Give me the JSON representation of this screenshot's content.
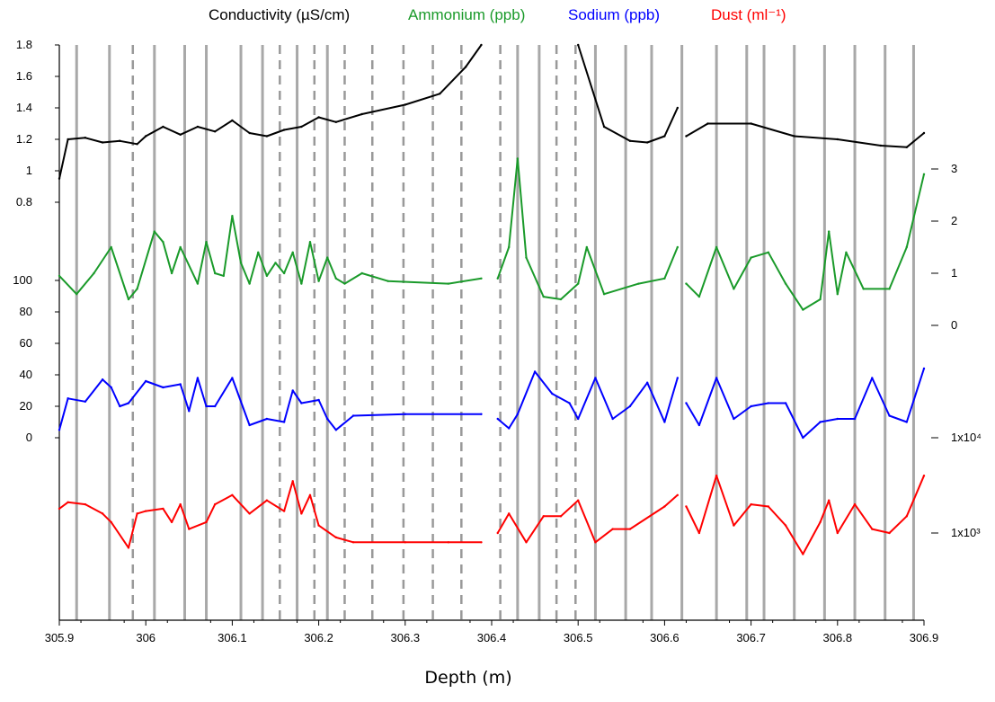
{
  "chart_data": {
    "type": "line",
    "title_parts": [
      {
        "text": "Conductivity (µS/cm)",
        "color": "#000000"
      },
      {
        "text": "Ammonium (ppb)",
        "color": "#1a9a2a"
      },
      {
        "text": "Sodium (ppb)",
        "color": "#0000ff"
      },
      {
        "text": "Dust (ml⁻¹)",
        "color": "#ff0000"
      }
    ],
    "xlabel": "Depth (m)",
    "xlim": [
      305.9,
      306.9
    ],
    "x_ticks": [
      "305.9",
      "306",
      "306.1",
      "306.2",
      "306.3",
      "306.4",
      "306.5",
      "306.6",
      "306.7",
      "306.8",
      "306.9"
    ],
    "conductivity_axis": {
      "range": [
        0.8,
        1.8
      ],
      "ticks": [
        "0.8",
        "1",
        "1.2",
        "1.4",
        "1.6",
        "1.8"
      ]
    },
    "sodium_axis": {
      "range": [
        0,
        100
      ],
      "ticks": [
        "0",
        "20",
        "40",
        "60",
        "80",
        "100"
      ]
    },
    "ammonium_axis": {
      "range": [
        0,
        3
      ],
      "ticks": [
        "0",
        "1",
        "2",
        "3"
      ]
    },
    "dust_axis": {
      "scale": "log",
      "ticks": [
        "1x10³",
        "1x10⁴"
      ]
    },
    "solid_lines": [
      305.92,
      305.958,
      306.01,
      306.045,
      306.07,
      306.11,
      306.135,
      306.175,
      306.21,
      306.43,
      306.455,
      306.52,
      306.555,
      306.585,
      306.62,
      306.66,
      306.695,
      306.715,
      306.75,
      306.785,
      306.82,
      306.855,
      306.888
    ],
    "dashed_lines": [
      305.985,
      306.155,
      306.195,
      306.23,
      306.262,
      306.298,
      306.332,
      306.365,
      306.41,
      306.475,
      306.497
    ],
    "gaps": [
      [
        306.388,
        306.407
      ],
      [
        306.615,
        306.625
      ]
    ],
    "series": [
      {
        "name": "Conductivity",
        "color": "#000000",
        "axis": "conductivity",
        "x": [
          305.9,
          305.91,
          305.93,
          305.95,
          305.97,
          305.99,
          306.0,
          306.02,
          306.04,
          306.06,
          306.08,
          306.1,
          306.12,
          306.14,
          306.16,
          306.18,
          306.2,
          306.22,
          306.25,
          306.3,
          306.34,
          306.37,
          306.388,
          306.5,
          306.53,
          306.56,
          306.58,
          306.6,
          306.615,
          306.625,
          306.65,
          306.7,
          306.75,
          306.8,
          306.85,
          306.88,
          306.9
        ],
        "y": [
          0.95,
          1.2,
          1.21,
          1.18,
          1.19,
          1.17,
          1.22,
          1.28,
          1.23,
          1.28,
          1.25,
          1.32,
          1.24,
          1.22,
          1.26,
          1.28,
          1.34,
          1.31,
          1.36,
          1.42,
          1.49,
          1.66,
          1.8,
          1.8,
          1.28,
          1.19,
          1.18,
          1.22,
          1.4,
          1.22,
          1.3,
          1.3,
          1.22,
          1.2,
          1.16,
          1.15,
          1.24
        ]
      },
      {
        "name": "Ammonium",
        "color": "#1a9a2a",
        "axis": "ammonium",
        "x": [
          305.9,
          305.92,
          305.94,
          305.96,
          305.98,
          305.99,
          306.01,
          306.02,
          306.03,
          306.04,
          306.06,
          306.07,
          306.08,
          306.09,
          306.1,
          306.11,
          306.12,
          306.13,
          306.14,
          306.15,
          306.16,
          306.17,
          306.18,
          306.19,
          306.2,
          306.21,
          306.22,
          306.23,
          306.25,
          306.28,
          306.35,
          306.388,
          306.407,
          306.42,
          306.43,
          306.44,
          306.46,
          306.48,
          306.5,
          306.51,
          306.53,
          306.57,
          306.6,
          306.615,
          306.625,
          306.64,
          306.66,
          306.68,
          306.7,
          306.72,
          306.74,
          306.76,
          306.78,
          306.79,
          306.8,
          306.81,
          306.83,
          306.86,
          306.88,
          306.9
        ],
        "y": [
          0.95,
          0.6,
          1.0,
          1.5,
          0.5,
          0.7,
          1.8,
          1.6,
          1.0,
          1.5,
          0.8,
          1.6,
          1.0,
          0.95,
          2.1,
          1.2,
          0.8,
          1.4,
          0.95,
          1.2,
          1.0,
          1.4,
          0.8,
          1.6,
          0.85,
          1.3,
          0.9,
          0.8,
          1.0,
          0.85,
          0.8,
          0.9,
          0.9,
          1.5,
          3.2,
          1.3,
          0.55,
          0.5,
          0.8,
          1.5,
          0.6,
          0.8,
          0.9,
          1.5,
          0.8,
          0.55,
          1.5,
          0.7,
          1.3,
          1.4,
          0.8,
          0.3,
          0.5,
          1.8,
          0.6,
          1.4,
          0.7,
          0.7,
          1.5,
          2.9
        ]
      },
      {
        "name": "Sodium",
        "color": "#0000ff",
        "axis": "sodium",
        "x": [
          305.9,
          305.91,
          305.93,
          305.95,
          305.96,
          305.97,
          305.98,
          306.0,
          306.02,
          306.04,
          306.05,
          306.06,
          306.07,
          306.08,
          306.1,
          306.12,
          306.14,
          306.16,
          306.17,
          306.18,
          306.2,
          306.21,
          306.22,
          306.24,
          306.3,
          306.388,
          306.407,
          306.42,
          306.43,
          306.45,
          306.47,
          306.49,
          306.5,
          306.52,
          306.54,
          306.56,
          306.58,
          306.6,
          306.615,
          306.625,
          306.64,
          306.66,
          306.68,
          306.7,
          306.72,
          306.74,
          306.76,
          306.78,
          306.8,
          306.82,
          306.84,
          306.86,
          306.88,
          306.9
        ],
        "y": [
          5,
          25,
          23,
          37,
          32,
          20,
          22,
          36,
          32,
          34,
          17,
          38,
          20,
          20,
          38,
          8,
          12,
          10,
          30,
          22,
          24,
          12,
          5,
          14,
          15,
          15,
          12,
          6,
          15,
          42,
          28,
          22,
          12,
          38,
          12,
          20,
          35,
          10,
          38,
          22,
          8,
          38,
          12,
          20,
          22,
          22,
          0,
          10,
          12,
          12,
          38,
          14,
          10,
          44
        ]
      },
      {
        "name": "Dust",
        "color": "#ff0000",
        "axis": "dust",
        "x": [
          305.9,
          305.91,
          305.93,
          305.95,
          305.96,
          305.98,
          305.99,
          306.0,
          306.02,
          306.03,
          306.04,
          306.05,
          306.07,
          306.08,
          306.1,
          306.12,
          306.14,
          306.16,
          306.17,
          306.18,
          306.19,
          306.2,
          306.22,
          306.24,
          306.3,
          306.35,
          306.388,
          306.407,
          306.42,
          306.44,
          306.46,
          306.48,
          306.5,
          306.52,
          306.54,
          306.56,
          306.6,
          306.615,
          306.625,
          306.64,
          306.66,
          306.68,
          306.7,
          306.72,
          306.74,
          306.76,
          306.78,
          306.79,
          306.8,
          306.82,
          306.84,
          306.86,
          306.88,
          306.9
        ],
        "y": [
          1800,
          2100,
          2000,
          1600,
          1300,
          700,
          1600,
          1700,
          1800,
          1300,
          2000,
          1100,
          1300,
          2000,
          2500,
          1600,
          2200,
          1700,
          3500,
          1600,
          2500,
          1200,
          900,
          800,
          800,
          800,
          800,
          1000,
          1600,
          800,
          1500,
          1500,
          2200,
          800,
          1100,
          1100,
          1900,
          2500,
          1900,
          1000,
          4000,
          1200,
          2000,
          1900,
          1200,
          600,
          1300,
          2200,
          1000,
          2000,
          1100,
          1000,
          1500,
          4000
        ]
      }
    ]
  }
}
